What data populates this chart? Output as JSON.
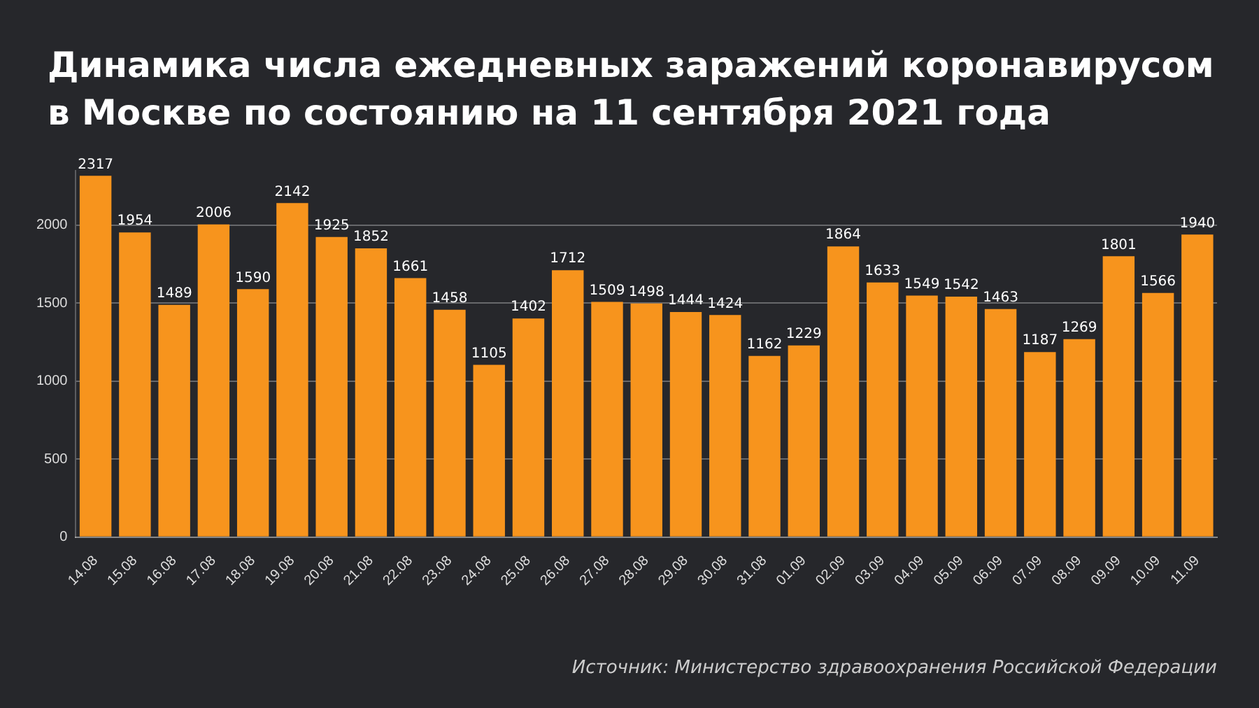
{
  "chart_data": {
    "type": "bar",
    "title": "Динамика числа ежедневных заражений коронавирусом в Москве по состоянию на 11 сентября 2021 года",
    "categories": [
      "14.08",
      "15.08",
      "16.08",
      "17.08",
      "18.08",
      "19.08",
      "20.08",
      "21.08",
      "22.08",
      "23.08",
      "24.08",
      "25.08",
      "26.08",
      "27.08",
      "28.08",
      "29.08",
      "30.08",
      "31.08",
      "01.09",
      "02.09",
      "03.09",
      "04.09",
      "05.09",
      "06.09",
      "07.09",
      "08.09",
      "09.09",
      "10.09",
      "11.09"
    ],
    "values": [
      2317,
      1954,
      1489,
      2006,
      1590,
      2142,
      1925,
      1852,
      1661,
      1458,
      1105,
      1402,
      1712,
      1509,
      1498,
      1444,
      1424,
      1162,
      1229,
      1864,
      1633,
      1549,
      1542,
      1463,
      1187,
      1269,
      1801,
      1566,
      1940
    ],
    "color": "#f7941d",
    "ylim": [
      0,
      2350
    ],
    "yticks": [
      0,
      500,
      1000,
      1500,
      2000
    ],
    "grid": "y",
    "data_labels": true,
    "annotations": [
      "Источник: Министерство здравоохранения Российской Федерации"
    ]
  }
}
